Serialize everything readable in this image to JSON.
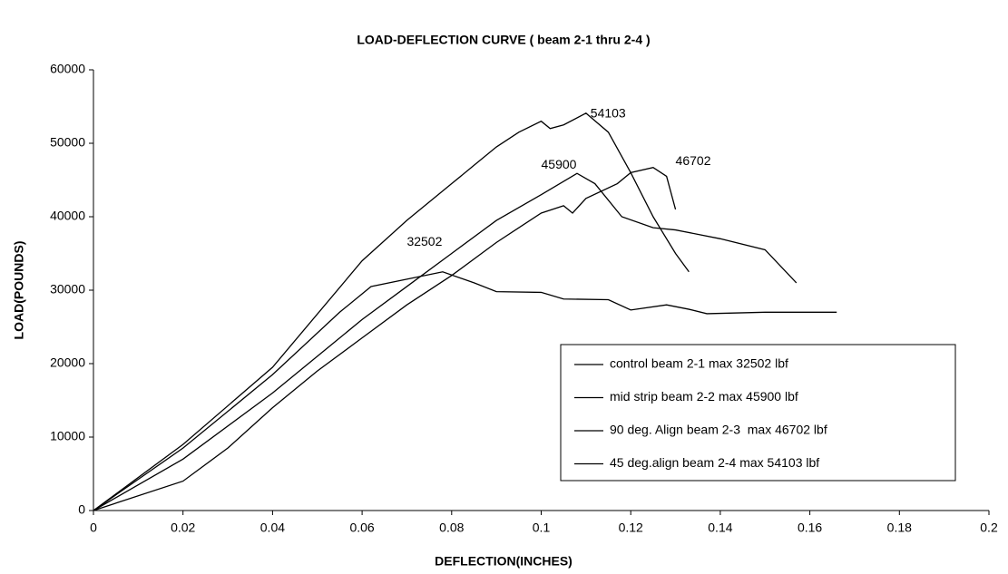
{
  "chart_data": {
    "type": "line",
    "title": "LOAD-DEFLECTION CURVE ( beam 2-1 thru 2-4 )",
    "x_label": "DEFLECTION(INCHES)",
    "y_label": "LOAD(POUNDS)",
    "xlim": [
      0,
      0.2
    ],
    "ylim": [
      0,
      60000
    ],
    "xticks": [
      0,
      0.02,
      0.04,
      0.06,
      0.08,
      0.1,
      0.12,
      0.14,
      0.16,
      0.18,
      0.2
    ],
    "yticks": [
      0,
      10000,
      20000,
      30000,
      40000,
      50000,
      60000
    ],
    "grid": false,
    "legend": "lower right",
    "series": [
      {
        "name": "control beam 2-1 max 32502 lbf",
        "color": "#000000",
        "x": [
          0,
          0.02,
          0.04,
          0.055,
          0.062,
          0.07,
          0.078,
          0.085,
          0.09,
          0.1,
          0.105,
          0.115,
          0.12,
          0.128,
          0.133,
          0.137,
          0.15,
          0.166
        ],
        "values": [
          0,
          8500,
          18500,
          27000,
          30500,
          31500,
          32500,
          31000,
          29800,
          29700,
          28800,
          28700,
          27300,
          28000,
          27400,
          26800,
          27000,
          27000
        ]
      },
      {
        "name": "mid strip beam 2-2 max 45900 lbf",
        "color": "#000000",
        "x": [
          0,
          0.02,
          0.04,
          0.06,
          0.07,
          0.08,
          0.09,
          0.1,
          0.108,
          0.112,
          0.118,
          0.125,
          0.13,
          0.14,
          0.15,
          0.157
        ],
        "values": [
          0,
          7000,
          16000,
          26000,
          30500,
          35000,
          39500,
          43000,
          45900,
          44500,
          40000,
          38500,
          38200,
          37000,
          35500,
          31000
        ]
      },
      {
        "name": "90 deg. Align beam 2-3  max 46702 lbf",
        "color": "#000000",
        "x": [
          0,
          0.02,
          0.03,
          0.04,
          0.05,
          0.06,
          0.07,
          0.08,
          0.09,
          0.1,
          0.105,
          0.107,
          0.11,
          0.117,
          0.12,
          0.125,
          0.128,
          0.13
        ],
        "values": [
          0,
          4000,
          8500,
          14000,
          19000,
          23500,
          28000,
          32000,
          36500,
          40500,
          41500,
          40500,
          42500,
          44500,
          46000,
          46700,
          45500,
          41000
        ]
      },
      {
        "name": "45 deg.align beam 2-4 max 54103 lbf",
        "color": "#000000",
        "x": [
          0,
          0.02,
          0.04,
          0.06,
          0.07,
          0.08,
          0.085,
          0.09,
          0.095,
          0.1,
          0.102,
          0.105,
          0.11,
          0.115,
          0.12,
          0.125,
          0.13,
          0.133
        ],
        "values": [
          0,
          9000,
          19500,
          34000,
          39500,
          44500,
          47000,
          49500,
          51500,
          53000,
          52000,
          52500,
          54100,
          51500,
          46000,
          40000,
          35000,
          32500
        ]
      }
    ],
    "annotations": [
      {
        "text": "32502",
        "x": 0.07,
        "y": 36500
      },
      {
        "text": "45900",
        "x": 0.1,
        "y": 47000
      },
      {
        "text": "46702",
        "x": 0.13,
        "y": 47500
      },
      {
        "text": "54103",
        "x": 0.111,
        "y": 54000
      }
    ]
  }
}
